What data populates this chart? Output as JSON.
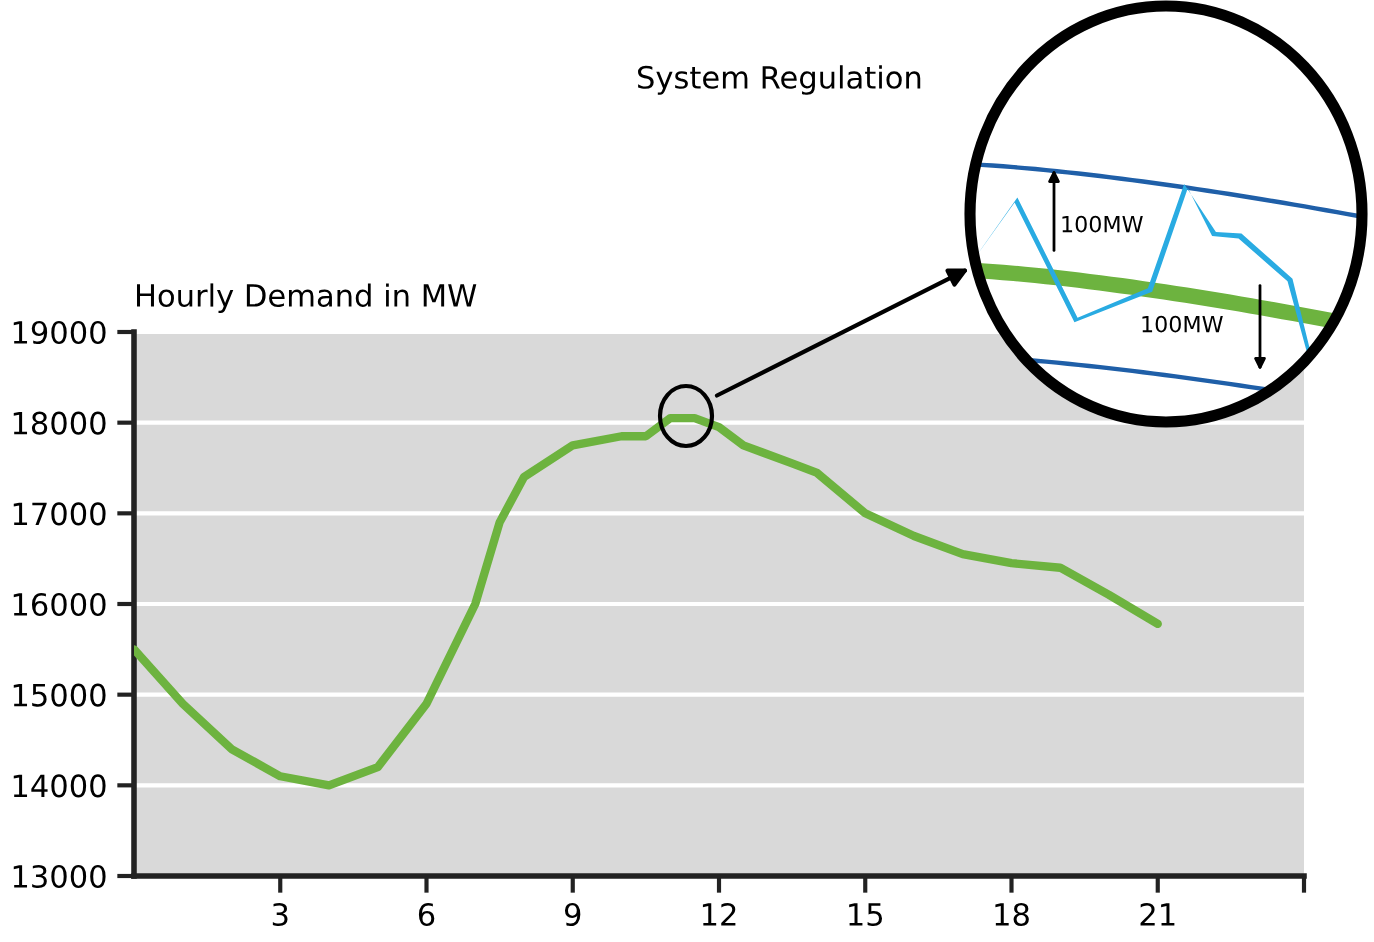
{
  "chart_data": {
    "type": "line",
    "ylabel": "Hourly Demand in MW",
    "x": [
      0,
      1,
      2,
      3,
      4,
      5,
      6,
      7,
      7.5,
      8,
      9,
      10,
      10.5,
      11,
      11.5,
      12,
      12.5,
      13.5,
      14,
      15,
      16,
      17,
      18,
      19,
      20,
      21
    ],
    "series": [
      {
        "color": "#6db33f",
        "values": [
          15500,
          14900,
          14400,
          14100,
          14000,
          14200,
          14900,
          16000,
          16900,
          17400,
          17750,
          17850,
          17850,
          18050,
          18050,
          17950,
          17750,
          17550,
          17450,
          17000,
          16750,
          16550,
          16450,
          16400,
          16100,
          15780
        ]
      }
    ],
    "xlim": [
      0,
      24
    ],
    "xticks": [
      3,
      6,
      9,
      12,
      15,
      18,
      21,
      {
        "value": 24,
        "label": null
      }
    ],
    "ylim": [
      13000,
      19000
    ],
    "yticks": [
      13000,
      14000,
      15000,
      16000,
      17000,
      18000,
      19000
    ],
    "grid": "y",
    "marker": "none",
    "line_style": "solid",
    "annotations": [
      "System Regulation",
      "100MW",
      "100MW"
    ]
  }
}
